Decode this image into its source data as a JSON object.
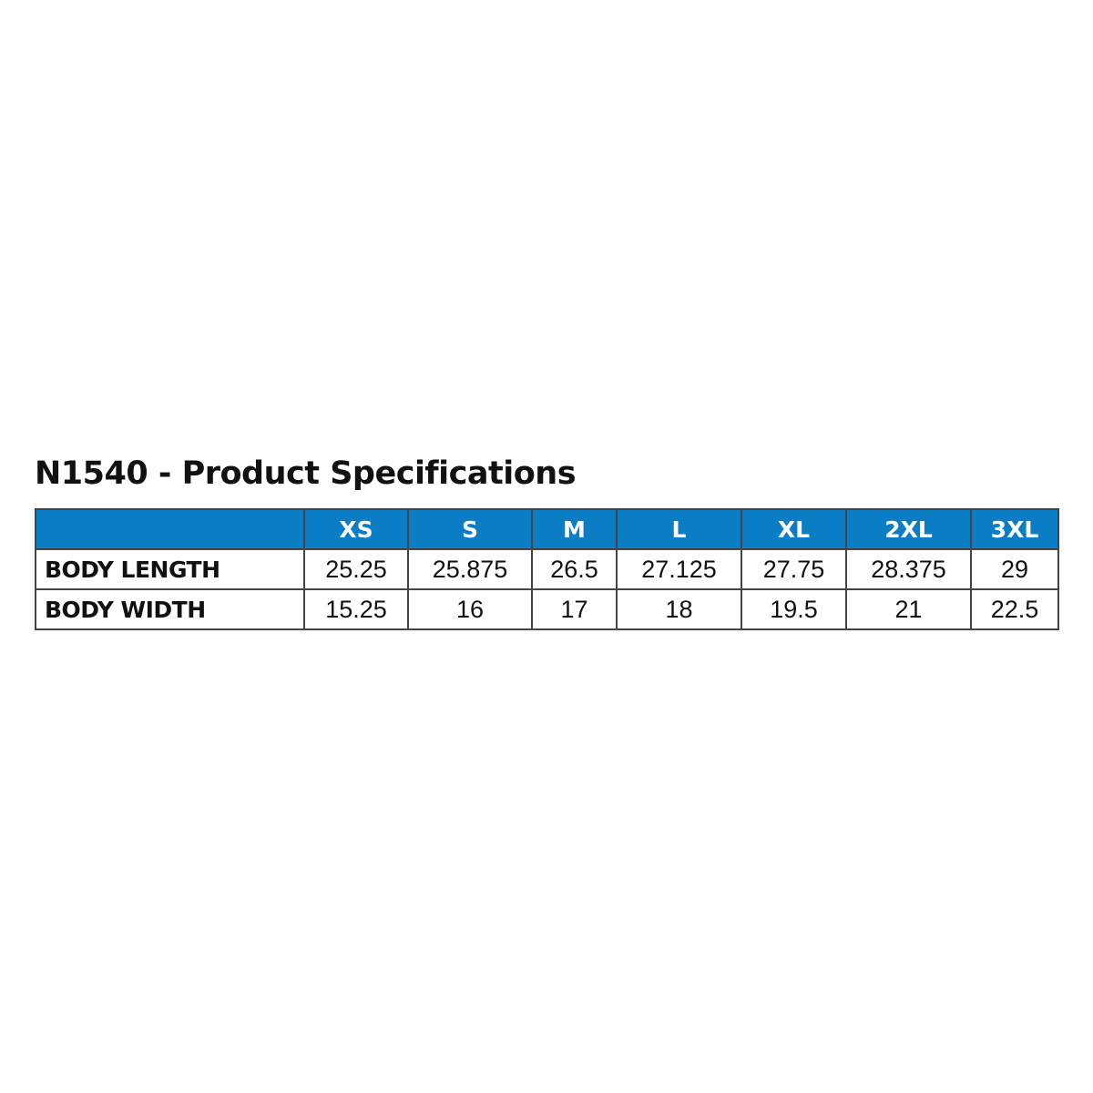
{
  "title": "N1540 - Product Specifications",
  "colors": {
    "header_bg": "#0a7dc5",
    "header_text": "#ffffff",
    "border": "#444444"
  },
  "table": {
    "corner": "",
    "sizes": [
      "XS",
      "S",
      "M",
      "L",
      "XL",
      "2XL",
      "3XL"
    ],
    "rows": [
      {
        "label": "BODY LENGTH",
        "values": [
          "25.25",
          "25.875",
          "26.5",
          "27.125",
          "27.75",
          "28.375",
          "29"
        ]
      },
      {
        "label": "BODY WIDTH",
        "values": [
          "15.25",
          "16",
          "17",
          "18",
          "19.5",
          "21",
          "22.5"
        ]
      }
    ]
  }
}
